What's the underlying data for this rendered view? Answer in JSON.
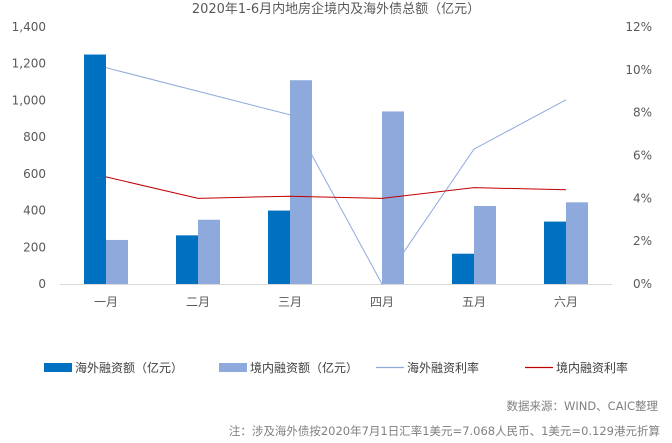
{
  "chart_data": {
    "type": "bar",
    "title": "2020年1-6月内地房企境内及海外债总额（亿元）",
    "categories": [
      "一月",
      "二月",
      "三月",
      "四月",
      "五月",
      "六月"
    ],
    "series": [
      {
        "name": "海外融资额（亿元）",
        "kind": "bar",
        "axis": "left",
        "color": "#0070C0",
        "values": [
          1250,
          265,
          400,
          0,
          165,
          340
        ]
      },
      {
        "name": "境内融资额（亿元）",
        "kind": "bar",
        "axis": "left",
        "color": "#8EA9DB",
        "values": [
          240,
          350,
          1110,
          940,
          425,
          445
        ]
      },
      {
        "name": "海外融资利率",
        "kind": "line",
        "axis": "right",
        "color": "#8EA9DB",
        "values": [
          10.1,
          9.0,
          7.9,
          0,
          6.3,
          8.6
        ]
      },
      {
        "name": "境内融资利率",
        "kind": "line",
        "axis": "right",
        "color": "#C00000",
        "values": [
          5.0,
          4.0,
          4.1,
          4.0,
          4.5,
          4.4
        ]
      }
    ],
    "ylim": [
      0,
      1400
    ],
    "y_ticks": [
      "0",
      "200",
      "400",
      "600",
      "800",
      "1,000",
      "1,200",
      "1,400"
    ],
    "y2lim": [
      0,
      12
    ],
    "y2_ticks": [
      "0%",
      "2%",
      "4%",
      "6%",
      "8%",
      "10%",
      "12%"
    ],
    "grid": false,
    "legend_position": "bottom"
  },
  "footer": {
    "source": "数据来源：WIND、CAIC整理",
    "note": "注：涉及海外债按2020年7月1日汇率1美元=7.068人民币、1美元=0.129港元折算"
  }
}
